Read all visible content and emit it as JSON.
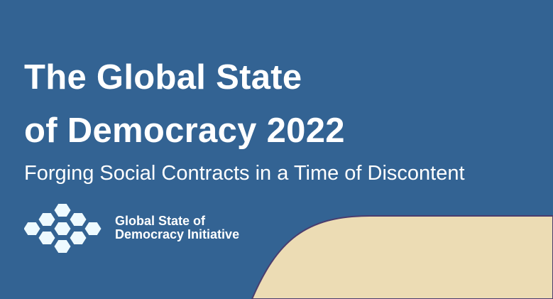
{
  "title_lines": [
    "The Global State",
    "of Democracy 2022"
  ],
  "subtitle": "Forging Social Contracts in a Time of Discontent",
  "organization": {
    "lines": [
      "Global State of",
      "Democracy Initiative"
    ],
    "logo_icon": "hexagon-cluster-icon"
  },
  "colors": {
    "background": "#336393",
    "accent_panel": "#ecdcb4",
    "text": "#ffffff"
  }
}
